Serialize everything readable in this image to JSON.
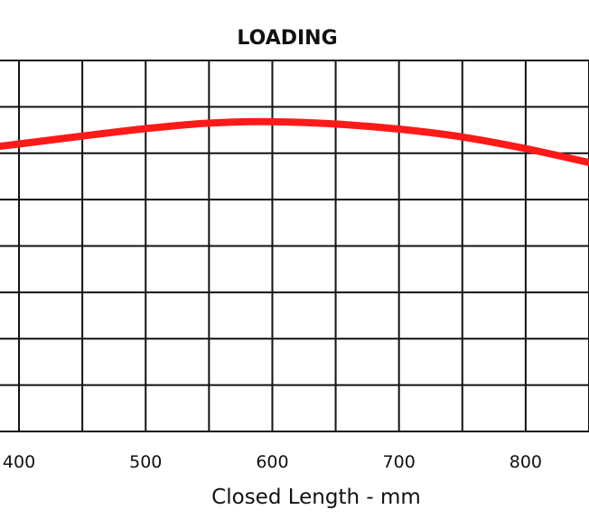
{
  "chart_data": {
    "type": "line",
    "title": "LOADING",
    "xlabel": "Closed Length - mm",
    "ylabel": "",
    "x_ticks": [
      400,
      500,
      600,
      700,
      800
    ],
    "xlim": [
      385,
      850
    ],
    "ylim": [
      0,
      8
    ],
    "grid": true,
    "series": [
      {
        "color": "#ff1a1a",
        "x": [
          385,
          400,
          450,
          500,
          550,
          600,
          650,
          700,
          750,
          800,
          850
        ],
        "y": [
          6.15,
          6.2,
          6.37,
          6.53,
          6.65,
          6.68,
          6.63,
          6.52,
          6.35,
          6.1,
          5.8
        ]
      }
    ]
  }
}
